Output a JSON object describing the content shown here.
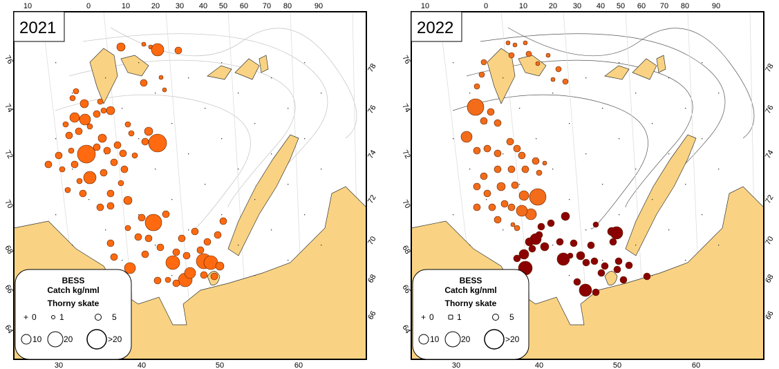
{
  "colors": {
    "land": "#f9d383",
    "catch_2021": "#ff6a10",
    "catch_2022_west": "#f26c1a",
    "catch_2022_east": "#8b0000",
    "contour": "#c8c8c8"
  },
  "panels": [
    {
      "year": "2021",
      "top_ticks": [
        "10",
        "0",
        "10",
        "20",
        "30",
        "40",
        "50",
        "60",
        "70",
        "80",
        "90"
      ],
      "bottom_ticks": [
        "30",
        "40",
        "50",
        "60"
      ],
      "left_ticks": [
        "76",
        "74",
        "72",
        "70",
        "68",
        "66",
        "64"
      ],
      "right_ticks": [
        "78",
        "76",
        "74",
        "72",
        "70",
        "68",
        "66"
      ],
      "legend": {
        "title": "BESS",
        "subtitle": "Catch kg/nml",
        "species": "Thorny skate",
        "classes": [
          "0",
          "1",
          "5",
          "10",
          "20",
          ">20"
        ]
      }
    },
    {
      "year": "2022",
      "top_ticks": [
        "10",
        "0",
        "10",
        "20",
        "30",
        "40",
        "50",
        "60",
        "70",
        "80",
        "90"
      ],
      "bottom_ticks": [
        "30",
        "40",
        "50",
        "60"
      ],
      "left_ticks": [
        "76",
        "74",
        "72",
        "70",
        "68",
        "66",
        "64"
      ],
      "right_ticks": [
        "78",
        "76",
        "74",
        "72",
        "70",
        "68",
        "66"
      ],
      "legend": {
        "title": "BESS",
        "subtitle": "Catch kg/nml",
        "species": "Thorny skate",
        "classes": [
          "0",
          "1",
          "5",
          "10",
          "20",
          ">20"
        ]
      }
    }
  ]
}
